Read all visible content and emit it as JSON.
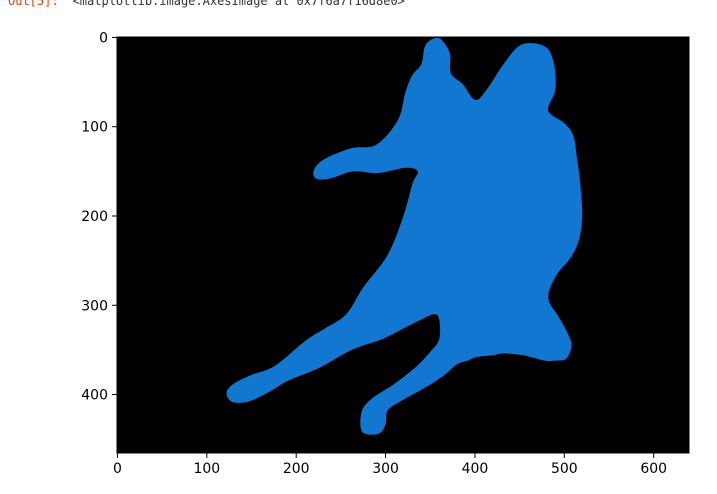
{
  "cell_output": {
    "prompt": "Out[5]:",
    "text": "<matplotlib.image.AxesImage at 0x7f6a7f16d8e0>"
  },
  "chart_data": {
    "type": "image",
    "xlim": [
      -0.5,
      639.5
    ],
    "ylim": [
      465.5,
      -0.5
    ],
    "x_ticks": [
      0,
      100,
      200,
      300,
      400,
      500,
      600
    ],
    "y_ticks": [
      0,
      100,
      200,
      300,
      400
    ],
    "background_color": "#000000",
    "mask_color": "#1177d1",
    "mask_outline": [
      [
        362,
        2
      ],
      [
        372,
        18
      ],
      [
        373,
        40
      ],
      [
        386,
        52
      ],
      [
        400,
        70
      ],
      [
        412,
        60
      ],
      [
        432,
        30
      ],
      [
        452,
        8
      ],
      [
        478,
        10
      ],
      [
        488,
        28
      ],
      [
        490,
        58
      ],
      [
        482,
        82
      ],
      [
        500,
        96
      ],
      [
        510,
        110
      ],
      [
        514,
        134
      ],
      [
        518,
        166
      ],
      [
        520,
        200
      ],
      [
        516,
        228
      ],
      [
        506,
        248
      ],
      [
        490,
        268
      ],
      [
        482,
        292
      ],
      [
        493,
        312
      ],
      [
        503,
        330
      ],
      [
        508,
        345
      ],
      [
        502,
        360
      ],
      [
        490,
        362
      ],
      [
        478,
        362
      ],
      [
        454,
        356
      ],
      [
        432,
        354
      ],
      [
        420,
        356
      ],
      [
        402,
        358
      ],
      [
        392,
        362
      ],
      [
        380,
        366
      ],
      [
        366,
        378
      ],
      [
        348,
        390
      ],
      [
        316,
        408
      ],
      [
        302,
        418
      ],
      [
        300,
        433
      ],
      [
        292,
        444
      ],
      [
        274,
        442
      ],
      [
        273,
        420
      ],
      [
        284,
        405
      ],
      [
        310,
        388
      ],
      [
        335,
        368
      ],
      [
        350,
        352
      ],
      [
        360,
        338
      ],
      [
        360,
        316
      ],
      [
        354,
        310
      ],
      [
        336,
        318
      ],
      [
        320,
        326
      ],
      [
        296,
        338
      ],
      [
        262,
        350
      ],
      [
        226,
        370
      ],
      [
        192,
        384
      ],
      [
        168,
        398
      ],
      [
        146,
        408
      ],
      [
        128,
        408
      ],
      [
        122,
        398
      ],
      [
        130,
        388
      ],
      [
        150,
        378
      ],
      [
        176,
        368
      ],
      [
        210,
        340
      ],
      [
        232,
        326
      ],
      [
        256,
        310
      ],
      [
        275,
        280
      ],
      [
        302,
        244
      ],
      [
        320,
        200
      ],
      [
        330,
        164
      ],
      [
        336,
        150
      ],
      [
        322,
        146
      ],
      [
        292,
        152
      ],
      [
        264,
        150
      ],
      [
        238,
        158
      ],
      [
        222,
        158
      ],
      [
        220,
        148
      ],
      [
        232,
        136
      ],
      [
        262,
        124
      ],
      [
        290,
        120
      ],
      [
        314,
        92
      ],
      [
        322,
        62
      ],
      [
        330,
        42
      ],
      [
        340,
        30
      ],
      [
        344,
        10
      ],
      [
        352,
        2
      ]
    ]
  }
}
